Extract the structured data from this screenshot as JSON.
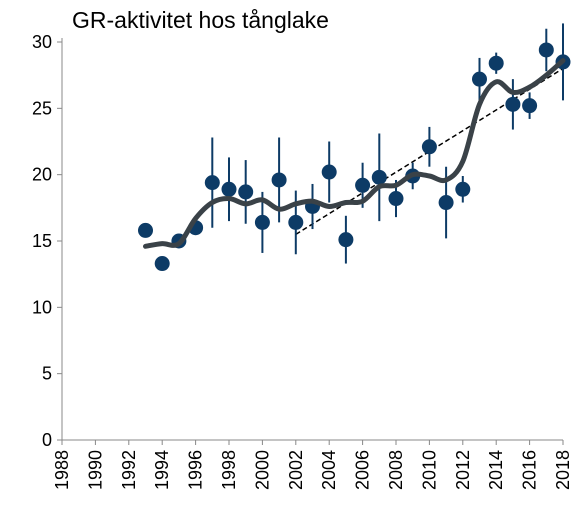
{
  "chart_data": {
    "type": "scatter",
    "title": "GR-aktivitet hos tånglake",
    "x": [
      1993,
      1994,
      1995,
      1996,
      1997,
      1998,
      1999,
      2000,
      2001,
      2002,
      2003,
      2004,
      2005,
      2006,
      2007,
      2008,
      2009,
      2010,
      2011,
      2012,
      2013,
      2014,
      2015,
      2016,
      2017,
      2018
    ],
    "series": [
      {
        "type": "scatter",
        "color": "#0d3b66",
        "values": [
          15.8,
          13.3,
          15.0,
          16.0,
          19.4,
          18.9,
          18.7,
          16.4,
          19.6,
          16.4,
          17.6,
          20.2,
          15.1,
          19.2,
          19.8,
          18.2,
          19.9,
          22.1,
          17.9,
          18.9,
          27.2,
          28.4,
          25.3,
          25.2,
          29.4,
          28.5
        ],
        "errors": [
          0,
          0,
          0,
          0,
          3.4,
          2.4,
          2.4,
          2.3,
          3.2,
          2.4,
          1.7,
          2.3,
          1.8,
          1.7,
          3.3,
          1.4,
          1.0,
          1.5,
          2.7,
          1.0,
          1.6,
          0.8,
          1.9,
          1.0,
          1.6,
          2.9
        ]
      },
      {
        "type": "line",
        "color": "#3a4248",
        "values": [
          14.6,
          14.8,
          14.8,
          16.7,
          17.9,
          18.2,
          17.8,
          18.1,
          17.4,
          17.8,
          18.0,
          17.6,
          17.9,
          18.0,
          19.1,
          19.2,
          20.0,
          19.9,
          19.6,
          21.0,
          25.3,
          27.0,
          26.2,
          26.6,
          27.5,
          28.6
        ]
      },
      {
        "type": "trend",
        "color": "#000000",
        "x": [
          2002,
          2018
        ],
        "values": [
          15.5,
          28.0
        ]
      }
    ],
    "xlim": [
      1988,
      2018
    ],
    "xticks": [
      1988,
      1990,
      1992,
      1994,
      1996,
      1998,
      2000,
      2002,
      2004,
      2006,
      2008,
      2010,
      2012,
      2014,
      2016,
      2018
    ],
    "ylim": [
      0,
      30
    ],
    "yticks": [
      0,
      5,
      10,
      15,
      20,
      25,
      30
    ]
  }
}
